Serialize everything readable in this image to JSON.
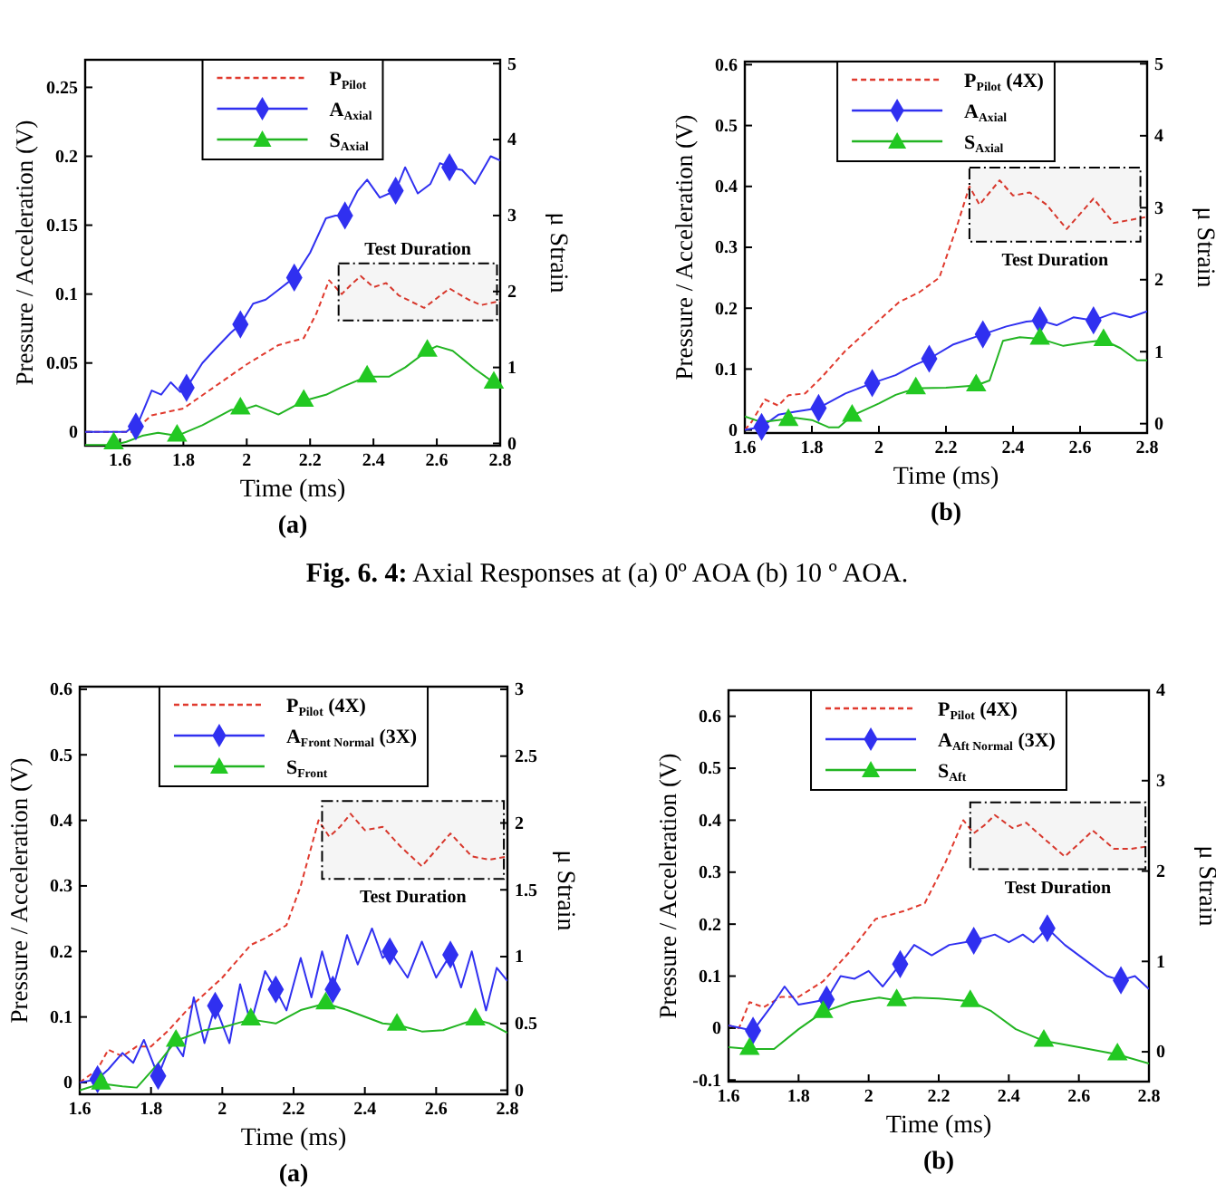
{
  "chart_data": [
    {
      "type": "line",
      "title": "(a)",
      "xlabel": "Time (ms)",
      "ylabel": "Pressure / Acceleration (V)",
      "y2label": "μ Strain",
      "xlim": [
        1.49,
        2.8
      ],
      "xticks": [
        1.6,
        1.8,
        2,
        2.2,
        2.4,
        2.6,
        2.8
      ],
      "ylim": [
        -0.01,
        0.27
      ],
      "yticks": [
        0,
        0.05,
        0.1,
        0.15,
        0.2,
        0.25
      ],
      "y2lim": [
        -0.03,
        5.05
      ],
      "y2ticks": [
        0,
        1,
        2,
        3,
        4,
        5
      ],
      "legend": "top",
      "annotations": [
        "Fig. 6. 4: Axial Responses at (a) 0º AOA (b) 10 º AOA."
      ],
      "bands": [
        {
          "axis": "x",
          "from": 2.29,
          "to": 2.79,
          "label": "Test Duration"
        }
      ],
      "series": [
        {
          "name": "P$_{Pilot}$",
          "type": "line",
          "color": "#e03a2e",
          "line_style": "dashed",
          "x": [
            1.49,
            1.64,
            1.7,
            1.8,
            1.9,
            2.0,
            2.1,
            2.18,
            2.22,
            2.26,
            2.3,
            2.33,
            2.36,
            2.4,
            2.44,
            2.48,
            2.56,
            2.64,
            2.7,
            2.74,
            2.8
          ],
          "values": [
            0,
            0,
            0.012,
            0.017,
            0.033,
            0.049,
            0.063,
            0.068,
            0.086,
            0.11,
            0.1,
            0.107,
            0.113,
            0.105,
            0.108,
            0.099,
            0.09,
            0.104,
            0.096,
            0.092,
            0.095
          ]
        },
        {
          "name": "A$_{Axial}$",
          "type": "line",
          "color": "#3030f0",
          "x": [
            1.49,
            1.62,
            1.66,
            1.7,
            1.73,
            1.76,
            1.79,
            1.81,
            1.86,
            1.9,
            1.95,
            1.98,
            2.02,
            2.06,
            2.1,
            2.15,
            2.2,
            2.25,
            2.28,
            2.31,
            2.35,
            2.38,
            2.42,
            2.47,
            2.5,
            2.54,
            2.58,
            2.61,
            2.64,
            2.68,
            2.72,
            2.77,
            2.8
          ],
          "values": [
            0,
            0,
            0.008,
            0.03,
            0.027,
            0.036,
            0.029,
            0.032,
            0.05,
            0.06,
            0.072,
            0.078,
            0.093,
            0.096,
            0.103,
            0.112,
            0.13,
            0.155,
            0.157,
            0.157,
            0.175,
            0.183,
            0.17,
            0.175,
            0.192,
            0.173,
            0.18,
            0.195,
            0.192,
            0.19,
            0.18,
            0.2,
            0.197
          ]
        },
        {
          "type": "scatter",
          "color": "#3030f0",
          "marker": "diamond",
          "x": [
            1.65,
            1.81,
            1.98,
            2.15,
            2.31,
            2.47,
            2.64
          ],
          "values": [
            0.004,
            0.032,
            0.078,
            0.112,
            0.157,
            0.175,
            0.192
          ]
        },
        {
          "name": "S$_{Axial}$",
          "type": "line",
          "color": "#22b422",
          "axis": "y2",
          "x": [
            1.49,
            1.58,
            1.62,
            1.67,
            1.72,
            1.78,
            1.86,
            1.95,
            2.0,
            2.03,
            2.1,
            2.18,
            2.25,
            2.3,
            2.38,
            2.45,
            2.5,
            2.57,
            2.6,
            2.65,
            2.72,
            2.78,
            2.8
          ],
          "values": [
            -0.02,
            -0.02,
            0.02,
            0.1,
            0.14,
            0.1,
            0.24,
            0.44,
            0.46,
            0.5,
            0.38,
            0.56,
            0.64,
            0.74,
            0.88,
            0.88,
            1.0,
            1.22,
            1.28,
            1.22,
            0.98,
            0.8,
            0.78
          ]
        },
        {
          "type": "scatter",
          "color": "#22c822",
          "marker": "triangle",
          "axis": "y2",
          "x": [
            1.58,
            1.78,
            1.98,
            2.18,
            2.38,
            2.57,
            2.78
          ],
          "values": [
            0,
            0.1,
            0.46,
            0.56,
            0.88,
            1.22,
            0.8
          ]
        }
      ]
    },
    {
      "type": "line",
      "title": "(b)",
      "xlabel": "Time (ms)",
      "ylabel": "Pressure / Acceleration (V)",
      "y2label": "μ Strain",
      "xlim": [
        1.6,
        2.8
      ],
      "xticks": [
        1.6,
        1.8,
        2,
        2.2,
        2.4,
        2.6,
        2.8
      ],
      "ylim": [
        -0.005,
        0.605
      ],
      "yticks": [
        0,
        0.1,
        0.2,
        0.3,
        0.4,
        0.5,
        0.6
      ],
      "y2lim": [
        -0.13,
        5.03
      ],
      "y2ticks": [
        0,
        1,
        2,
        3,
        4,
        5
      ],
      "legend": "top",
      "bands": [
        {
          "axis": "x",
          "from": 2.27,
          "to": 2.78,
          "label": "Test Duration"
        }
      ],
      "series": [
        {
          "name": "P$_{Pilot}$ (4X)",
          "type": "line",
          "color": "#e03a2e",
          "line_style": "dashed",
          "x": [
            1.6,
            1.62,
            1.66,
            1.7,
            1.73,
            1.78,
            1.83,
            1.9,
            1.98,
            2.06,
            2.12,
            2.18,
            2.23,
            2.27,
            2.3,
            2.33,
            2.36,
            2.4,
            2.45,
            2.5,
            2.56,
            2.64,
            2.7,
            2.75,
            2.8
          ],
          "values": [
            0,
            0.013,
            0.05,
            0.04,
            0.057,
            0.06,
            0.087,
            0.13,
            0.17,
            0.21,
            0.226,
            0.25,
            0.33,
            0.4,
            0.37,
            0.39,
            0.41,
            0.385,
            0.39,
            0.37,
            0.33,
            0.38,
            0.34,
            0.345,
            0.35
          ]
        },
        {
          "name": "A$_{Axial}$",
          "type": "line",
          "color": "#3030f0",
          "x": [
            1.6,
            1.65,
            1.7,
            1.75,
            1.82,
            1.9,
            1.98,
            2.05,
            2.1,
            2.15,
            2.22,
            2.31,
            2.38,
            2.44,
            2.48,
            2.53,
            2.58,
            2.64,
            2.7,
            2.75,
            2.8
          ],
          "values": [
            0,
            0.005,
            0.025,
            0.03,
            0.036,
            0.06,
            0.077,
            0.09,
            0.105,
            0.117,
            0.14,
            0.157,
            0.17,
            0.178,
            0.18,
            0.172,
            0.185,
            0.18,
            0.192,
            0.185,
            0.195
          ]
        },
        {
          "type": "scatter",
          "color": "#3030f0",
          "marker": "diamond",
          "x": [
            1.65,
            1.82,
            1.98,
            2.15,
            2.31,
            2.48,
            2.64
          ],
          "values": [
            0.005,
            0.036,
            0.077,
            0.117,
            0.157,
            0.18,
            0.18
          ]
        },
        {
          "name": "S$_{Axial}$",
          "type": "line",
          "color": "#22b422",
          "axis": "y2",
          "x": [
            1.6,
            1.65,
            1.7,
            1.75,
            1.8,
            1.85,
            1.88,
            1.92,
            2.0,
            2.05,
            2.11,
            2.2,
            2.29,
            2.33,
            2.37,
            2.42,
            2.48,
            2.55,
            2.6,
            2.67,
            2.72,
            2.77,
            2.8
          ],
          "values": [
            0.1,
            0.02,
            0.05,
            0.08,
            0.05,
            -0.05,
            -0.05,
            0.11,
            0.28,
            0.4,
            0.49,
            0.5,
            0.53,
            0.6,
            1.15,
            1.2,
            1.18,
            1.08,
            1.12,
            1.16,
            1.05,
            0.88,
            0.88
          ]
        },
        {
          "type": "scatter",
          "color": "#22c822",
          "marker": "triangle",
          "axis": "y2",
          "x": [
            1.73,
            1.92,
            2.11,
            2.29,
            2.48,
            2.67
          ],
          "values": [
            0.05,
            0.11,
            0.49,
            0.53,
            1.18,
            1.16
          ]
        }
      ]
    },
    {
      "type": "line",
      "title": "(a)",
      "xlabel": "Time (ms)",
      "ylabel": "Pressure / Acceleration (V)",
      "y2label": "μ Strain",
      "xlim": [
        1.6,
        2.8
      ],
      "xticks": [
        1.6,
        1.8,
        2,
        2.2,
        2.4,
        2.6,
        2.8
      ],
      "ylim": [
        -0.018,
        0.604
      ],
      "yticks": [
        0,
        0.1,
        0.2,
        0.3,
        0.4,
        0.5,
        0.6
      ],
      "y2lim": [
        -0.03,
        3.02
      ],
      "y2ticks": [
        0,
        0.5,
        1,
        1.5,
        2,
        2.5,
        3
      ],
      "legend": "top",
      "bands": [
        {
          "axis": "x",
          "from": 2.28,
          "to": 2.79,
          "label": "Test Duration"
        }
      ],
      "series": [
        {
          "name": "P$_{Pilot}$ (4X)",
          "type": "line",
          "color": "#e03a2e",
          "line_style": "dashed",
          "x": [
            1.6,
            1.65,
            1.68,
            1.72,
            1.76,
            1.8,
            1.85,
            1.9,
            2.0,
            2.08,
            2.12,
            2.18,
            2.22,
            2.27,
            2.3,
            2.33,
            2.36,
            2.4,
            2.45,
            2.5,
            2.56,
            2.64,
            2.7,
            2.75,
            2.8
          ],
          "values": [
            0,
            0.02,
            0.05,
            0.04,
            0.055,
            0.055,
            0.08,
            0.11,
            0.16,
            0.21,
            0.22,
            0.24,
            0.3,
            0.4,
            0.375,
            0.39,
            0.41,
            0.385,
            0.39,
            0.36,
            0.33,
            0.38,
            0.345,
            0.34,
            0.345
          ]
        },
        {
          "name": "A$_{Front Normal}$ (3X)",
          "type": "line",
          "color": "#3030f0",
          "x": [
            1.6,
            1.65,
            1.68,
            1.72,
            1.75,
            1.78,
            1.82,
            1.86,
            1.89,
            1.92,
            1.95,
            1.98,
            2.02,
            2.05,
            2.08,
            2.12,
            2.15,
            2.18,
            2.22,
            2.25,
            2.28,
            2.31,
            2.35,
            2.38,
            2.42,
            2.45,
            2.47,
            2.52,
            2.56,
            2.6,
            2.64,
            2.67,
            2.7,
            2.74,
            2.77,
            2.8
          ],
          "values": [
            0,
            0.005,
            0.02,
            0.045,
            0.03,
            0.065,
            0.01,
            0.065,
            0.04,
            0.13,
            0.06,
            0.117,
            0.06,
            0.15,
            0.09,
            0.17,
            0.142,
            0.11,
            0.19,
            0.13,
            0.2,
            0.142,
            0.225,
            0.18,
            0.235,
            0.19,
            0.2,
            0.16,
            0.215,
            0.16,
            0.195,
            0.145,
            0.2,
            0.11,
            0.175,
            0.155
          ]
        },
        {
          "type": "scatter",
          "color": "#3030f0",
          "marker": "diamond",
          "x": [
            1.65,
            1.82,
            1.98,
            2.15,
            2.31,
            2.47,
            2.64
          ],
          "values": [
            0.005,
            0.01,
            0.117,
            0.142,
            0.142,
            0.2,
            0.195
          ]
        },
        {
          "name": "S$_{Front}$",
          "type": "line",
          "color": "#22b422",
          "axis": "y2",
          "x": [
            1.6,
            1.66,
            1.72,
            1.76,
            1.82,
            1.87,
            1.95,
            2.0,
            2.08,
            2.15,
            2.22,
            2.29,
            2.35,
            2.45,
            2.49,
            2.56,
            2.62,
            2.71,
            2.75,
            2.8
          ],
          "values": [
            0,
            0.05,
            0.03,
            0.02,
            0.2,
            0.37,
            0.45,
            0.47,
            0.53,
            0.5,
            0.6,
            0.65,
            0.6,
            0.5,
            0.49,
            0.44,
            0.45,
            0.53,
            0.5,
            0.43
          ]
        },
        {
          "type": "scatter",
          "color": "#22c822",
          "marker": "triangle",
          "axis": "y2",
          "x": [
            1.66,
            1.87,
            2.08,
            2.29,
            2.49,
            2.71
          ],
          "values": [
            0.05,
            0.37,
            0.53,
            0.65,
            0.49,
            0.53
          ]
        }
      ]
    },
    {
      "type": "line",
      "title": "(b)",
      "xlabel": "Time (ms)",
      "ylabel": "Pressure / Acceleration (V)",
      "y2label": "μ Strain",
      "xlim": [
        1.6,
        2.8
      ],
      "xticks": [
        1.6,
        1.8,
        2,
        2.2,
        2.4,
        2.6,
        2.8
      ],
      "ylim": [
        -0.103,
        0.65
      ],
      "yticks": [
        -0.1,
        0,
        0.1,
        0.2,
        0.3,
        0.4,
        0.5,
        0.6
      ],
      "y2lim": [
        -0.33,
        4
      ],
      "y2ticks": [
        0,
        1,
        2,
        3,
        4
      ],
      "legend": "top",
      "bands": [
        {
          "axis": "x",
          "from": 2.29,
          "to": 2.79,
          "label": "Test Duration"
        }
      ],
      "series": [
        {
          "name": "P$_{Pilot}$ (4X)",
          "type": "line",
          "color": "#e03a2e",
          "line_style": "dashed",
          "x": [
            1.6,
            1.63,
            1.66,
            1.7,
            1.75,
            1.8,
            1.87,
            1.95,
            2.02,
            2.1,
            2.16,
            2.22,
            2.27,
            2.3,
            2.33,
            2.36,
            2.41,
            2.45,
            2.5,
            2.56,
            2.64,
            2.7,
            2.75,
            2.8
          ],
          "values": [
            0.005,
            0,
            0.05,
            0.04,
            0.06,
            0.06,
            0.09,
            0.15,
            0.21,
            0.225,
            0.24,
            0.32,
            0.4,
            0.375,
            0.39,
            0.41,
            0.385,
            0.395,
            0.365,
            0.33,
            0.38,
            0.345,
            0.345,
            0.35
          ]
        },
        {
          "name": "A$_{Aft Normal}$ (3X)",
          "type": "line",
          "color": "#3030f0",
          "x": [
            1.6,
            1.67,
            1.72,
            1.76,
            1.8,
            1.84,
            1.88,
            1.92,
            1.96,
            2.0,
            2.04,
            2.09,
            2.13,
            2.18,
            2.23,
            2.3,
            2.36,
            2.4,
            2.44,
            2.47,
            2.51,
            2.56,
            2.62,
            2.68,
            2.72,
            2.76,
            2.8
          ],
          "values": [
            0.005,
            -0.005,
            0.04,
            0.08,
            0.045,
            0.05,
            0.055,
            0.1,
            0.095,
            0.11,
            0.08,
            0.123,
            0.16,
            0.14,
            0.16,
            0.168,
            0.18,
            0.165,
            0.18,
            0.165,
            0.192,
            0.16,
            0.13,
            0.1,
            0.092,
            0.1,
            0.075
          ]
        },
        {
          "type": "scatter",
          "color": "#3030f0",
          "marker": "diamond",
          "x": [
            1.67,
            1.88,
            2.09,
            2.3,
            2.51,
            2.72
          ],
          "values": [
            -0.005,
            0.055,
            0.123,
            0.168,
            0.192,
            0.092
          ]
        },
        {
          "name": "S$_{Aft}$",
          "type": "line",
          "color": "#22b422",
          "axis": "y2",
          "x": [
            1.6,
            1.66,
            1.73,
            1.8,
            1.87,
            1.95,
            2.03,
            2.08,
            2.13,
            2.2,
            2.29,
            2.35,
            2.42,
            2.5,
            2.6,
            2.71,
            2.8
          ],
          "values": [
            0.05,
            0.03,
            0.03,
            0.25,
            0.44,
            0.55,
            0.6,
            0.57,
            0.6,
            0.59,
            0.56,
            0.45,
            0.25,
            0.12,
            0.05,
            -0.03,
            -0.13
          ]
        },
        {
          "type": "scatter",
          "color": "#22c822",
          "marker": "triangle",
          "axis": "y2",
          "x": [
            1.66,
            1.87,
            2.08,
            2.29,
            2.5,
            2.71
          ],
          "values": [
            0.03,
            0.44,
            0.57,
            0.56,
            0.12,
            -0.03
          ]
        }
      ]
    }
  ]
}
